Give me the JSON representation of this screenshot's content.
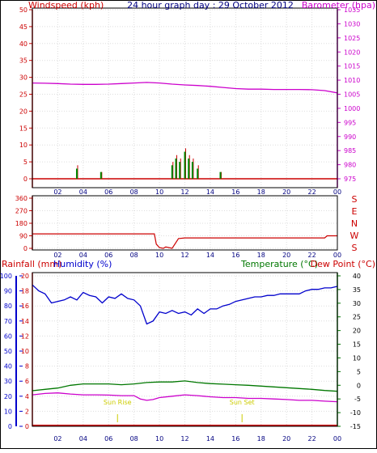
{
  "header": {
    "windspeed_label": "Windspeed (kph)",
    "title": "24 hour graph day : 29 October 2012",
    "barometer_label": "Barometer (hpa)"
  },
  "bottom_header": {
    "rainfall_label": "Rainfall (mm)",
    "humidity_label": "Humidity (%)",
    "temperature_label": "Temperature (°C)",
    "dewpoint_label": "Dew Point (°C)"
  },
  "annotations": {
    "sunrise": "Sun Rise",
    "sunset": "Sun Set"
  },
  "colors": {
    "wind": "#cc0000",
    "barometer": "#cc00cc",
    "direction": "#cc0000",
    "rain": "#cc0000",
    "humidity": "#0000cc",
    "temperature": "#007700",
    "dewpoint": "#cc00cc",
    "sun_marker": "#cccc00",
    "gust": "#008800",
    "grid": "#dddddd"
  },
  "chart_data": [
    {
      "id": "wind-baro",
      "type": "line",
      "x_ticks": [
        "02",
        "04",
        "06",
        "08",
        "10",
        "12",
        "14",
        "16",
        "18",
        "20",
        "22",
        "00"
      ],
      "xlim": [
        0,
        24
      ],
      "left_axis": {
        "label": "Windspeed (kph)",
        "ylim": [
          0,
          50
        ],
        "ticks": [
          "0",
          "5",
          "10",
          "15",
          "20",
          "25",
          "30",
          "35",
          "40",
          "45",
          "50"
        ]
      },
      "right_axis": {
        "label": "Barometer (hpa)",
        "ylim": [
          975,
          1035
        ],
        "ticks": [
          "975",
          "980",
          "985",
          "990",
          "995",
          "1000",
          "1005",
          "1010",
          "1015",
          "1020",
          "1025",
          "1030",
          "1035"
        ]
      },
      "series": [
        {
          "name": "Barometer",
          "axis": "right",
          "x": [
            0,
            1,
            2,
            3,
            4,
            5,
            6,
            7,
            8,
            9,
            10,
            11,
            12,
            13,
            14,
            15,
            16,
            17,
            18,
            19,
            20,
            21,
            22,
            23,
            24
          ],
          "y": [
            1009.0,
            1008.9,
            1008.8,
            1008.6,
            1008.5,
            1008.5,
            1008.6,
            1008.8,
            1009.0,
            1009.2,
            1009.0,
            1008.6,
            1008.3,
            1008.1,
            1007.8,
            1007.4,
            1007.0,
            1006.8,
            1006.8,
            1006.7,
            1006.7,
            1006.7,
            1006.6,
            1006.3,
            1005.5
          ]
        },
        {
          "name": "Wind Speed",
          "axis": "left",
          "x": [
            0,
            3.5,
            3.6,
            5.4,
            11.0,
            11.3,
            11.6,
            12.0,
            12.3,
            12.6,
            13.0,
            14.8,
            24
          ],
          "y": [
            0,
            4,
            0,
            2,
            5,
            7,
            6,
            9,
            7,
            6,
            4,
            2,
            0
          ]
        },
        {
          "name": "Gust",
          "axis": "left",
          "x": [
            3.5,
            5.4,
            11.0,
            11.3,
            11.6,
            12.0,
            12.3,
            12.6,
            13.0,
            14.8
          ],
          "y": [
            3,
            2,
            4,
            6,
            5,
            8,
            6,
            5,
            3,
            2
          ]
        }
      ]
    },
    {
      "id": "direction",
      "type": "line",
      "x_ticks": [
        "02",
        "04",
        "06",
        "08",
        "10",
        "12",
        "14",
        "16",
        "18",
        "20",
        "22",
        "00"
      ],
      "xlim": [
        0,
        24
      ],
      "left_axis": {
        "ylim": [
          0,
          360
        ],
        "ticks": [
          "0",
          "90",
          "180",
          "270",
          "360"
        ]
      },
      "right_labels": [
        "S",
        "E",
        "N",
        "W",
        "S"
      ],
      "series": [
        {
          "name": "Direction",
          "x": [
            0,
            9.6,
            9.75,
            10.0,
            10.3,
            10.5,
            11.0,
            11.5,
            12.0,
            13.0,
            16.0,
            20.0,
            23.0,
            23.2,
            24.0
          ],
          "y": [
            104,
            104,
            30,
            5,
            0,
            10,
            0,
            70,
            75,
            75,
            75,
            75,
            75,
            90,
            90
          ]
        }
      ]
    },
    {
      "id": "humidity-temp",
      "type": "line",
      "x_ticks": [
        "02",
        "04",
        "06",
        "08",
        "10",
        "12",
        "14",
        "16",
        "18",
        "20",
        "22",
        "00"
      ],
      "xlim": [
        0,
        24
      ],
      "left_axis": {
        "ylim": [
          0,
          100
        ],
        "ticks": [
          "0",
          "10",
          "20",
          "30",
          "40",
          "50",
          "60",
          "70",
          "80",
          "90",
          "100"
        ],
        "rain_ticks": [
          "0",
          "2",
          "4",
          "6",
          "8",
          "10",
          "12",
          "14",
          "16",
          "18",
          "20"
        ]
      },
      "right_axis": {
        "ylim": [
          -15,
          40
        ],
        "ticks": [
          "-15",
          "-10",
          "-5",
          "0",
          "5",
          "10",
          "15",
          "20",
          "25",
          "30",
          "35",
          "40"
        ]
      },
      "markers": [
        {
          "x": 6.7,
          "label_key": "sunrise"
        },
        {
          "x": 16.5,
          "label_key": "sunset"
        }
      ],
      "series": [
        {
          "name": "Humidity",
          "axis": "left",
          "x": [
            0,
            0.5,
            1,
            1.5,
            2,
            2.5,
            3,
            3.5,
            4,
            4.5,
            5,
            5.5,
            6,
            6.5,
            7,
            7.5,
            8,
            8.5,
            9,
            9.5,
            10,
            10.5,
            11,
            11.5,
            12,
            12.5,
            13,
            13.5,
            14,
            14.5,
            15,
            15.5,
            16,
            16.5,
            17,
            17.5,
            18,
            18.5,
            19,
            19.5,
            20,
            20.5,
            21,
            21.5,
            22,
            22.5,
            23,
            23.5,
            24
          ],
          "y": [
            94,
            90,
            88,
            82,
            83,
            84,
            86,
            84,
            89,
            87,
            86,
            82,
            86,
            85,
            88,
            85,
            84,
            80,
            68,
            70,
            76,
            75,
            77,
            75,
            76,
            74,
            78,
            75,
            78,
            78,
            80,
            81,
            83,
            84,
            85,
            86,
            86,
            87,
            87,
            88,
            88,
            88,
            88,
            90,
            91,
            91,
            92,
            92,
            93
          ]
        },
        {
          "name": "Temperature",
          "axis": "right",
          "x": [
            0,
            1,
            2,
            3,
            4,
            5,
            6,
            7,
            8,
            9,
            10,
            11,
            12,
            13,
            14,
            15,
            16,
            17,
            18,
            19,
            20,
            21,
            22,
            23,
            24
          ],
          "y": [
            -2,
            -1.5,
            -1,
            0,
            0.5,
            0.5,
            0.5,
            0.2,
            0.5,
            1,
            1.2,
            1.2,
            1.6,
            1,
            0.6,
            0.4,
            0.2,
            0,
            -0.3,
            -0.6,
            -0.9,
            -1.2,
            -1.5,
            -1.9,
            -2.2
          ]
        },
        {
          "name": "Dew Point",
          "axis": "right",
          "x": [
            0,
            1,
            2,
            3,
            4,
            5,
            6,
            7,
            8,
            8.5,
            9,
            9.5,
            10,
            11,
            12,
            13,
            14,
            15,
            16,
            17,
            18,
            19,
            20,
            21,
            22,
            23,
            24
          ],
          "y": [
            -3.5,
            -3,
            -2.8,
            -3.2,
            -3.5,
            -3.5,
            -3.6,
            -3.8,
            -3.8,
            -5,
            -5.5,
            -5.2,
            -4.5,
            -4,
            -3.5,
            -3.8,
            -4.2,
            -4.5,
            -4.5,
            -4.8,
            -4.8,
            -5,
            -5.2,
            -5.5,
            -5.5,
            -5.8,
            -6
          ]
        },
        {
          "name": "Rainfall",
          "axis": "rain",
          "x": [
            0,
            24
          ],
          "y": [
            0,
            0
          ]
        }
      ]
    }
  ]
}
